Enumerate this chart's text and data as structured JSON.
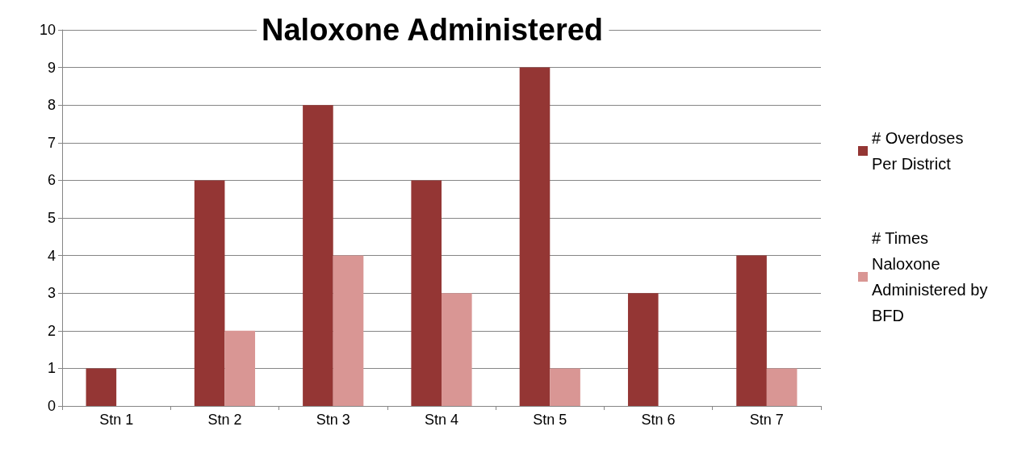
{
  "chart_data": {
    "type": "bar",
    "title": "Naloxone Administered",
    "categories": [
      "Stn 1",
      "Stn 2",
      "Stn 3",
      "Stn 4",
      "Stn 5",
      "Stn 6",
      "Stn 7"
    ],
    "series": [
      {
        "name": "# Overdoses Per District",
        "color": "#943634",
        "values": [
          1,
          6,
          8,
          6,
          9,
          3,
          4
        ]
      },
      {
        "name": "# Times Naloxone Administered by BFD",
        "color": "#d99694",
        "values": [
          0,
          2,
          4,
          3,
          1,
          0,
          1
        ]
      }
    ],
    "ylim": [
      0,
      10
    ],
    "yticks": [
      0,
      1,
      2,
      3,
      4,
      5,
      6,
      7,
      8,
      9,
      10
    ],
    "grid": "y",
    "legend": "right"
  }
}
